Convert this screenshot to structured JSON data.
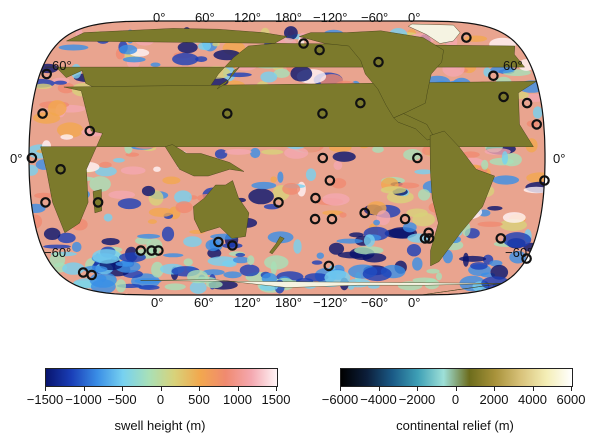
{
  "map": {
    "top_lon_labels": [
      "0°",
      "60°",
      "120°",
      "180°",
      "−120°",
      "−60°",
      "0°"
    ],
    "bottom_lon_labels": [
      "0°",
      "60°",
      "120°",
      "180°",
      "−120°",
      "−60°",
      "0°"
    ],
    "left_lat_labels": [
      "60°",
      "0°",
      "−60°"
    ],
    "right_lat_labels": [
      "60°",
      "0°",
      "−60°"
    ],
    "projection": "Robinson-like (centered 180°)",
    "marker_style": "black open circle",
    "colors": {
      "ocean_base": "#e9a48f",
      "land": "#7c7a2c",
      "ice": "#f5f3e2",
      "marker": "#111111"
    }
  },
  "hotspots": [
    {
      "lon": 325,
      "lat": 65
    },
    {
      "lon": 193,
      "lat": 60
    },
    {
      "lon": 205,
      "lat": 55
    },
    {
      "lon": 248,
      "lat": 47
    },
    {
      "lon": 330,
      "lat": 39
    },
    {
      "lon": 334,
      "lat": 28
    },
    {
      "lon": 350,
      "lat": 25
    },
    {
      "lon": 8,
      "lat": 20
    },
    {
      "lon": 42,
      "lat": 12
    },
    {
      "lon": 205,
      "lat": 20
    },
    {
      "lon": 232,
      "lat": 25
    },
    {
      "lon": 138,
      "lat": 20
    },
    {
      "lon": 355,
      "lat": 15
    },
    {
      "lon": 205,
      "lat": 0
    },
    {
      "lon": 271,
      "lat": 0
    },
    {
      "lon": 2,
      "lat": 0
    },
    {
      "lon": 22,
      "lat": -5
    },
    {
      "lon": 47,
      "lat": -20
    },
    {
      "lon": 174,
      "lat": -20
    },
    {
      "lon": 200,
      "lat": -18
    },
    {
      "lon": 210,
      "lat": -10
    },
    {
      "lon": 235,
      "lat": -25
    },
    {
      "lon": 0,
      "lat": -10
    },
    {
      "lon": 10,
      "lat": -20
    },
    {
      "lon": 200,
      "lat": -28
    },
    {
      "lon": 212,
      "lat": -28
    },
    {
      "lon": 264,
      "lat": -28
    },
    {
      "lon": 282,
      "lat": -35
    },
    {
      "lon": 280,
      "lat": -38
    },
    {
      "lon": 283,
      "lat": -38
    },
    {
      "lon": 0,
      "lat": -50
    },
    {
      "lon": 80,
      "lat": -45
    },
    {
      "lon": 85,
      "lat": -45
    },
    {
      "lon": 72,
      "lat": -45
    },
    {
      "lon": 130,
      "lat": -40
    },
    {
      "lon": 140,
      "lat": -42
    },
    {
      "lon": 212,
      "lat": -55
    },
    {
      "lon": 335,
      "lat": -38
    },
    {
      "lon": 20,
      "lat": -60
    },
    {
      "lon": 25,
      "lat": -62
    },
    {
      "lon": 5,
      "lat": 40
    }
  ],
  "colorbars": [
    {
      "name": "swell-height",
      "title": "swell height (m)",
      "ticks": [
        "−1500",
        "−1000",
        "−500",
        "0",
        "500",
        "1000",
        "1500"
      ],
      "stops": [
        "#08146e",
        "#1a3fb8",
        "#3a8ee6",
        "#77d1f0",
        "#a8e0b8",
        "#d8d27a",
        "#f2a84e",
        "#f08a70",
        "#f4a8b0",
        "#fff4f6"
      ]
    },
    {
      "name": "continental-relief",
      "title": "continental relief (m)",
      "ticks": [
        "−6000",
        "−4000",
        "−2000",
        "0",
        "2000",
        "4000",
        "6000"
      ],
      "stops": [
        "#000000",
        "#0c1e3a",
        "#1a5a86",
        "#3ea0b6",
        "#9ee0d8",
        "#6c6c1c",
        "#a8923a",
        "#d8c27a",
        "#f4eeb6",
        "#ffffff"
      ]
    }
  ]
}
